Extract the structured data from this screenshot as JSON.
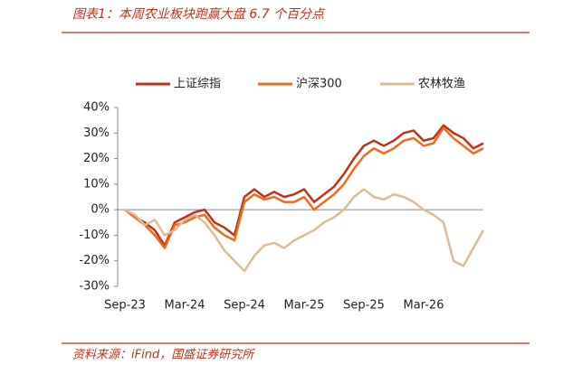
{
  "chart_data": {
    "type": "line",
    "title": "图表1：本周农业板块跑赢大盘 6.7 个百分点",
    "source": "资料来源：iFind，国盛证券研究所",
    "categories": [
      "Sep-23",
      null,
      null,
      null,
      null,
      null,
      "Mar-24",
      null,
      null,
      null,
      null,
      null,
      "Sep-24",
      null,
      null,
      null,
      null,
      null,
      "Mar-25",
      null,
      null,
      null,
      null,
      null,
      "Sep-25",
      null,
      null,
      null,
      null,
      null,
      "Mar-26",
      null,
      null,
      null,
      null,
      null,
      null
    ],
    "series": [
      {
        "name": "上证综指",
        "color": "#c0311a",
        "values": [
          0,
          -3,
          -5,
          -8,
          -14,
          -5,
          -3,
          -1,
          0,
          -5,
          -7,
          -10,
          5,
          8,
          5,
          7,
          5,
          6,
          8,
          3,
          6,
          9,
          14,
          20,
          25,
          27,
          25,
          27,
          30,
          31,
          27,
          28,
          33,
          30,
          28,
          24,
          26
        ]
      },
      {
        "name": "沪深300",
        "color": "#f06a1e",
        "values": [
          0,
          -3,
          -6,
          -10,
          -15,
          -6,
          -5,
          -3,
          -2,
          -7,
          -10,
          -12,
          3,
          6,
          4,
          5,
          3,
          3,
          5,
          0,
          3,
          6,
          10,
          16,
          21,
          24,
          22,
          24,
          27,
          28,
          25,
          26,
          32,
          28,
          25,
          22,
          24
        ]
      },
      {
        "name": "农林牧渔",
        "color": "#dcbc96",
        "values": [
          0,
          -2,
          -6,
          -4,
          -10,
          -8,
          -4,
          -2,
          -5,
          -10,
          -16,
          -20,
          -24,
          -18,
          -14,
          -13,
          -15,
          -12,
          -10,
          -8,
          -5,
          -3,
          0,
          5,
          8,
          5,
          4,
          6,
          5,
          3,
          0,
          -2,
          -5,
          -20,
          -22,
          -15,
          -8
        ]
      }
    ],
    "ylim": [
      -30,
      40
    ],
    "yticks": [
      {
        "value": -30,
        "label": "-30%"
      },
      {
        "value": -20,
        "label": "-20%"
      },
      {
        "value": -10,
        "label": "-10%"
      },
      {
        "value": 0,
        "label": "0%"
      },
      {
        "value": 10,
        "label": "10%"
      },
      {
        "value": 20,
        "label": "20%"
      },
      {
        "value": 30,
        "label": "30%"
      },
      {
        "value": 40,
        "label": "40%"
      }
    ]
  }
}
